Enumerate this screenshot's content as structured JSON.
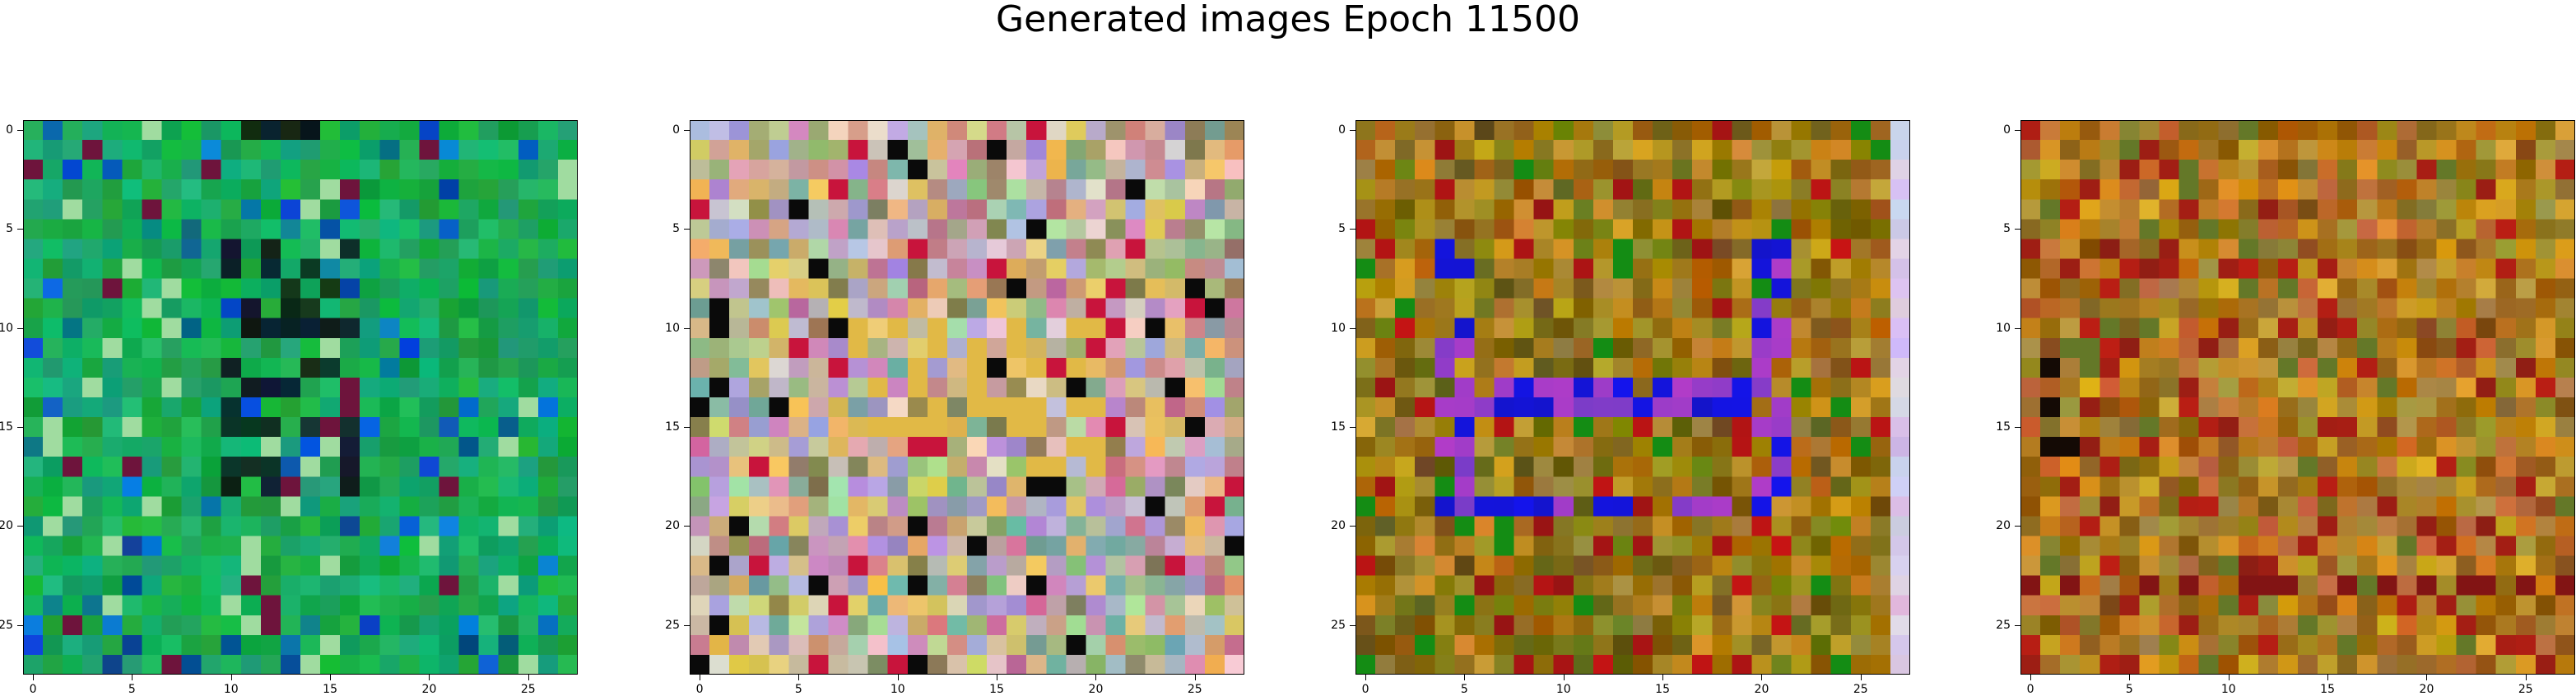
{
  "figure": {
    "title": "Generated images Epoch 11500"
  },
  "chart_data": [
    {
      "type": "heatmap",
      "name": "generated-image-1",
      "palette": "green",
      "grid_size": 28,
      "xlim": [
        -0.5,
        27.5
      ],
      "ylim": [
        27.5,
        -0.5
      ],
      "x_ticks": [
        0,
        5,
        10,
        15,
        20,
        25
      ],
      "y_ticks": [
        0,
        5,
        10,
        15,
        20,
        25
      ],
      "x_tick_labels": [
        "0",
        "5",
        "10",
        "15",
        "20",
        "25"
      ],
      "y_tick_labels": [
        "0",
        "5",
        "10",
        "15",
        "20",
        "25"
      ]
    },
    {
      "type": "heatmap",
      "name": "generated-image-2",
      "palette": "pastel",
      "grid_size": 28,
      "xlim": [
        -0.5,
        27.5
      ],
      "ylim": [
        27.5,
        -0.5
      ],
      "x_ticks": [
        0,
        5,
        10,
        15,
        20,
        25
      ],
      "y_ticks": [
        0,
        5,
        10,
        15,
        20,
        25
      ],
      "x_tick_labels": [
        "0",
        "5",
        "10",
        "15",
        "20",
        "25"
      ],
      "y_tick_labels": [
        "0",
        "5",
        "10",
        "15",
        "20",
        "25"
      ]
    },
    {
      "type": "heatmap",
      "name": "generated-image-3",
      "palette": "olive-blue",
      "grid_size": 28,
      "xlim": [
        -0.5,
        27.5
      ],
      "ylim": [
        27.5,
        -0.5
      ],
      "x_ticks": [
        0,
        5,
        10,
        15,
        20,
        25
      ],
      "y_ticks": [
        0,
        5,
        10,
        15,
        20,
        25
      ],
      "x_tick_labels": [
        "0",
        "5",
        "10",
        "15",
        "20",
        "25"
      ],
      "y_tick_labels": [
        "0",
        "5",
        "10",
        "15",
        "20",
        "25"
      ]
    },
    {
      "type": "heatmap",
      "name": "generated-image-4",
      "palette": "ochre",
      "grid_size": 28,
      "xlim": [
        -0.5,
        27.5
      ],
      "ylim": [
        27.5,
        -0.5
      ],
      "x_ticks": [
        0,
        5,
        10,
        15,
        20,
        25
      ],
      "y_ticks": [
        0,
        5,
        10,
        15,
        20,
        25
      ],
      "x_tick_labels": [
        "0",
        "5",
        "10",
        "15",
        "20",
        "25"
      ],
      "y_tick_labels": [
        "0",
        "5",
        "10",
        "15",
        "20",
        "25"
      ]
    }
  ]
}
